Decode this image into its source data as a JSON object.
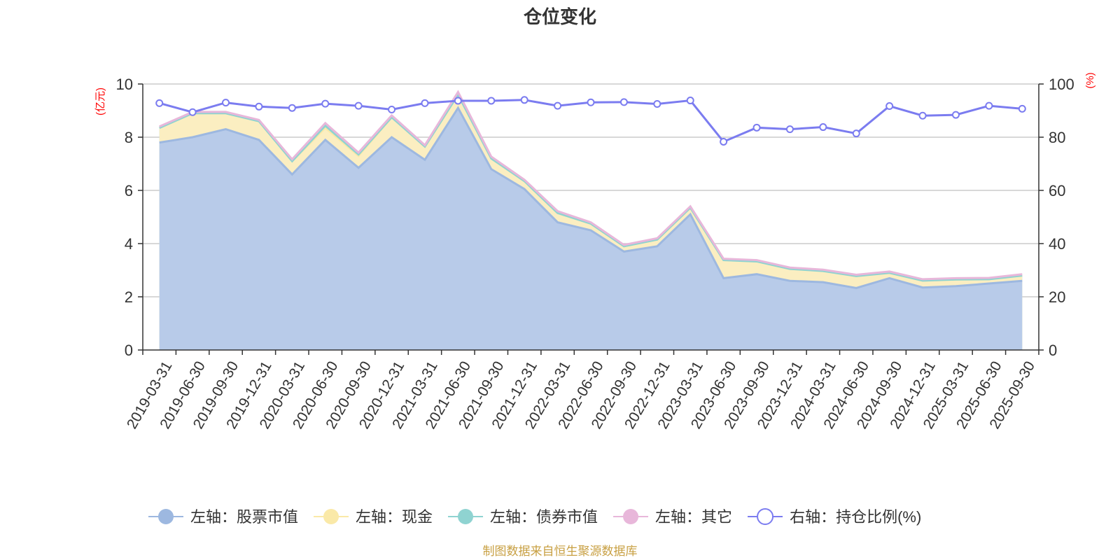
{
  "chart_data": {
    "type": "area",
    "title": "仓位变化",
    "left_axis_unit": "(亿元)",
    "right_axis_unit": "(%)",
    "ylim_left": [
      0,
      10
    ],
    "ylim_right": [
      0,
      100
    ],
    "y_ticks_left": [
      "0",
      "2",
      "4",
      "6",
      "8",
      "10"
    ],
    "y_ticks_right": [
      "0",
      "20",
      "40",
      "60",
      "80",
      "100"
    ],
    "grid": true,
    "legend_position": "bottom",
    "categories": [
      "2019-03-31",
      "2019-06-30",
      "2019-09-30",
      "2019-12-31",
      "2020-03-31",
      "2020-06-30",
      "2020-09-30",
      "2020-12-31",
      "2021-03-31",
      "2021-06-30",
      "2021-09-30",
      "2021-12-31",
      "2022-03-31",
      "2022-06-30",
      "2022-09-30",
      "2022-12-31",
      "2023-03-31",
      "2023-06-30",
      "2023-09-30",
      "2023-12-31",
      "2024-03-31",
      "2024-06-30",
      "2024-09-30",
      "2024-12-31",
      "2025-03-31",
      "2025-06-30",
      "2025-09-30"
    ],
    "series": [
      {
        "name": "左轴：股票市值",
        "axis": "left",
        "stack": true,
        "color": "#9db8e0",
        "fill": "#b8cbe9",
        "values": [
          7.8,
          8.0,
          8.3,
          7.9,
          6.6,
          7.9,
          6.85,
          8.0,
          7.15,
          9.1,
          6.8,
          6.05,
          4.8,
          4.5,
          3.7,
          3.9,
          5.1,
          2.7,
          2.85,
          2.6,
          2.55,
          2.33,
          2.7,
          2.35,
          2.4,
          2.5,
          2.6
        ]
      },
      {
        "name": "左轴：现金",
        "axis": "left",
        "stack": true,
        "color": "#fae9a8",
        "fill": "#fbeec1",
        "values": [
          0.55,
          0.9,
          0.6,
          0.7,
          0.5,
          0.45,
          0.45,
          0.75,
          0.5,
          0.5,
          0.4,
          0.3,
          0.35,
          0.25,
          0.2,
          0.25,
          0.25,
          0.68,
          0.48,
          0.45,
          0.42,
          0.45,
          0.2,
          0.26,
          0.25,
          0.16,
          0.2
        ]
      },
      {
        "name": "左轴：债券市值",
        "axis": "left",
        "stack": true,
        "color": "#8fd3d1",
        "fill": "#a9dedc",
        "values": [
          0,
          0,
          0,
          0,
          0,
          0.08,
          0.05,
          0,
          0,
          0,
          0,
          0,
          0,
          0,
          0,
          0,
          0,
          0,
          0,
          0,
          0,
          0,
          0,
          0,
          0,
          0,
          0
        ]
      },
      {
        "name": "左轴：其它",
        "axis": "left",
        "stack": true,
        "color": "#e8b7da",
        "fill": "#f0cbe6",
        "values": [
          0.05,
          0.05,
          0.05,
          0.05,
          0.07,
          0.1,
          0.07,
          0.07,
          0.05,
          0.1,
          0.07,
          0.05,
          0.07,
          0.05,
          0.05,
          0.05,
          0.05,
          0.05,
          0.05,
          0.05,
          0.05,
          0.05,
          0.05,
          0.05,
          0.05,
          0.05,
          0.05
        ]
      },
      {
        "name": "右轴：持仓比例(%)",
        "axis": "right",
        "type": "line",
        "color": "#7b7cf0",
        "values": [
          92.8,
          89.4,
          93,
          91.5,
          91,
          92.6,
          91.8,
          90.4,
          92.8,
          93.7,
          93.7,
          94,
          91.8,
          93.1,
          93.2,
          92.5,
          93.8,
          78.3,
          83.6,
          83,
          83.8,
          81.4,
          91.7,
          88.1,
          88.4,
          91.8,
          90.7
        ]
      }
    ],
    "source_note": "制图数据来自恒生聚源数据库"
  }
}
